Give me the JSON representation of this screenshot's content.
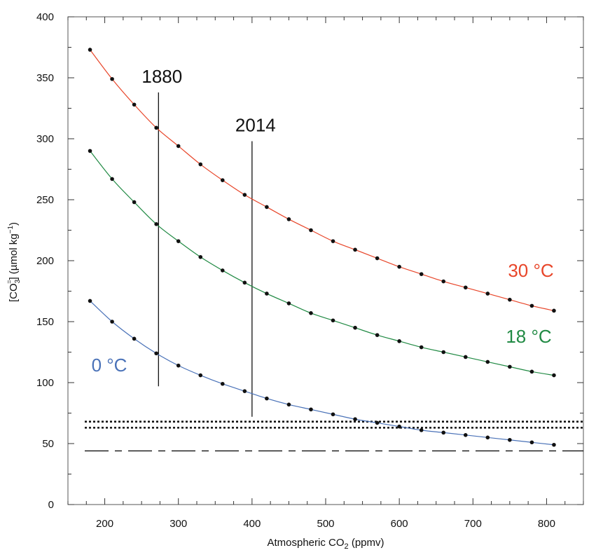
{
  "chart_data": {
    "type": "line",
    "xlabel_pre": "Atmospheric CO",
    "xlabel_sub": "2",
    "xlabel_post": " (ppmv)",
    "ylabel_pre": "[CO",
    "ylabel_sub": "3",
    "ylabel_sup": "=",
    "ylabel_post": "] (µmol kg",
    "ylabel_unit_sup": "−1",
    "ylabel_close": ")",
    "xlim": [
      150,
      850
    ],
    "ylim": [
      0,
      400
    ],
    "x_ticks": [
      200,
      300,
      400,
      500,
      600,
      700,
      800
    ],
    "y_ticks": [
      0,
      50,
      100,
      150,
      200,
      250,
      300,
      350,
      400
    ],
    "grid": false,
    "x": [
      180,
      210,
      240,
      270,
      300,
      330,
      360,
      390,
      420,
      450,
      480,
      510,
      540,
      570,
      600,
      630,
      660,
      690,
      720,
      750,
      780,
      810
    ],
    "series": [
      {
        "name": "30 °C",
        "color": "#e8462a",
        "values": [
          373,
          349,
          328,
          309,
          294,
          279,
          266,
          254,
          244,
          234,
          225,
          216,
          209,
          202,
          195,
          189,
          183,
          178,
          173,
          168,
          163,
          159
        ]
      },
      {
        "name": "18 °C",
        "color": "#218a44",
        "values": [
          290,
          267,
          248,
          230,
          216,
          203,
          192,
          182,
          173,
          165,
          157,
          151,
          145,
          139,
          134,
          129,
          125,
          121,
          117,
          113,
          109,
          106
        ]
      },
      {
        "name": "0 °C",
        "color": "#4a72b8",
        "values": [
          167,
          150,
          136,
          124,
          114,
          106,
          99,
          93,
          87,
          82,
          78,
          74,
          70,
          67,
          64,
          61,
          59,
          57,
          55,
          53,
          51,
          49
        ]
      }
    ],
    "reference_lines": [
      {
        "label": "1880",
        "x": 273,
        "y_from": 97,
        "y_to": 338
      },
      {
        "label": "2014",
        "x": 400,
        "y_from": 72,
        "y_to": 298
      }
    ],
    "horizontal_lines": [
      {
        "y": 68,
        "style": "dotted"
      },
      {
        "y": 63,
        "style": "dotted"
      },
      {
        "y": 44,
        "style": "dash-dot"
      }
    ]
  }
}
